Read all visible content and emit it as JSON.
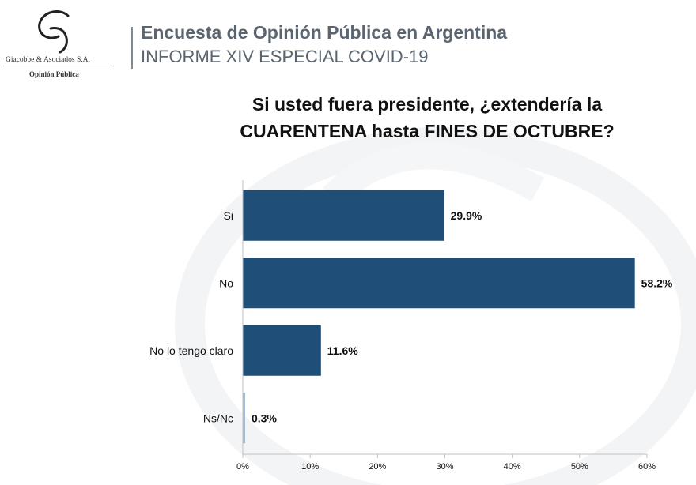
{
  "header": {
    "company": "Giacobbe & Asociados S.A.",
    "department": "Opinión Pública",
    "title": "Encuesta de Opinión Pública en Argentina",
    "subtitle": "INFORME XIV ESPECIAL COVID-19"
  },
  "chart_data": {
    "type": "bar",
    "orientation": "horizontal",
    "title_lines": [
      "Si usted fuera presidente, ¿extendería la",
      "CUARENTENA hasta FINES DE OCTUBRE?"
    ],
    "categories": [
      "Si",
      "No",
      "No lo tengo claro",
      "Ns/Nc"
    ],
    "values": [
      29.9,
      58.2,
      11.6,
      0.3
    ],
    "value_labels": [
      "29.9%",
      "58.2%",
      "11.6%",
      "0.3%"
    ],
    "xlim": [
      0,
      60
    ],
    "xticks": [
      "0%",
      "10%",
      "20%",
      "30%",
      "40%",
      "50%",
      "60%"
    ],
    "xlabel": "",
    "ylabel": "",
    "grid": false,
    "colors": {
      "bar": "#1f4e79",
      "bar_small": "#9db9d5",
      "axis": "#bfbfbf",
      "text": "#111111",
      "header_text": "#5a6570"
    }
  }
}
